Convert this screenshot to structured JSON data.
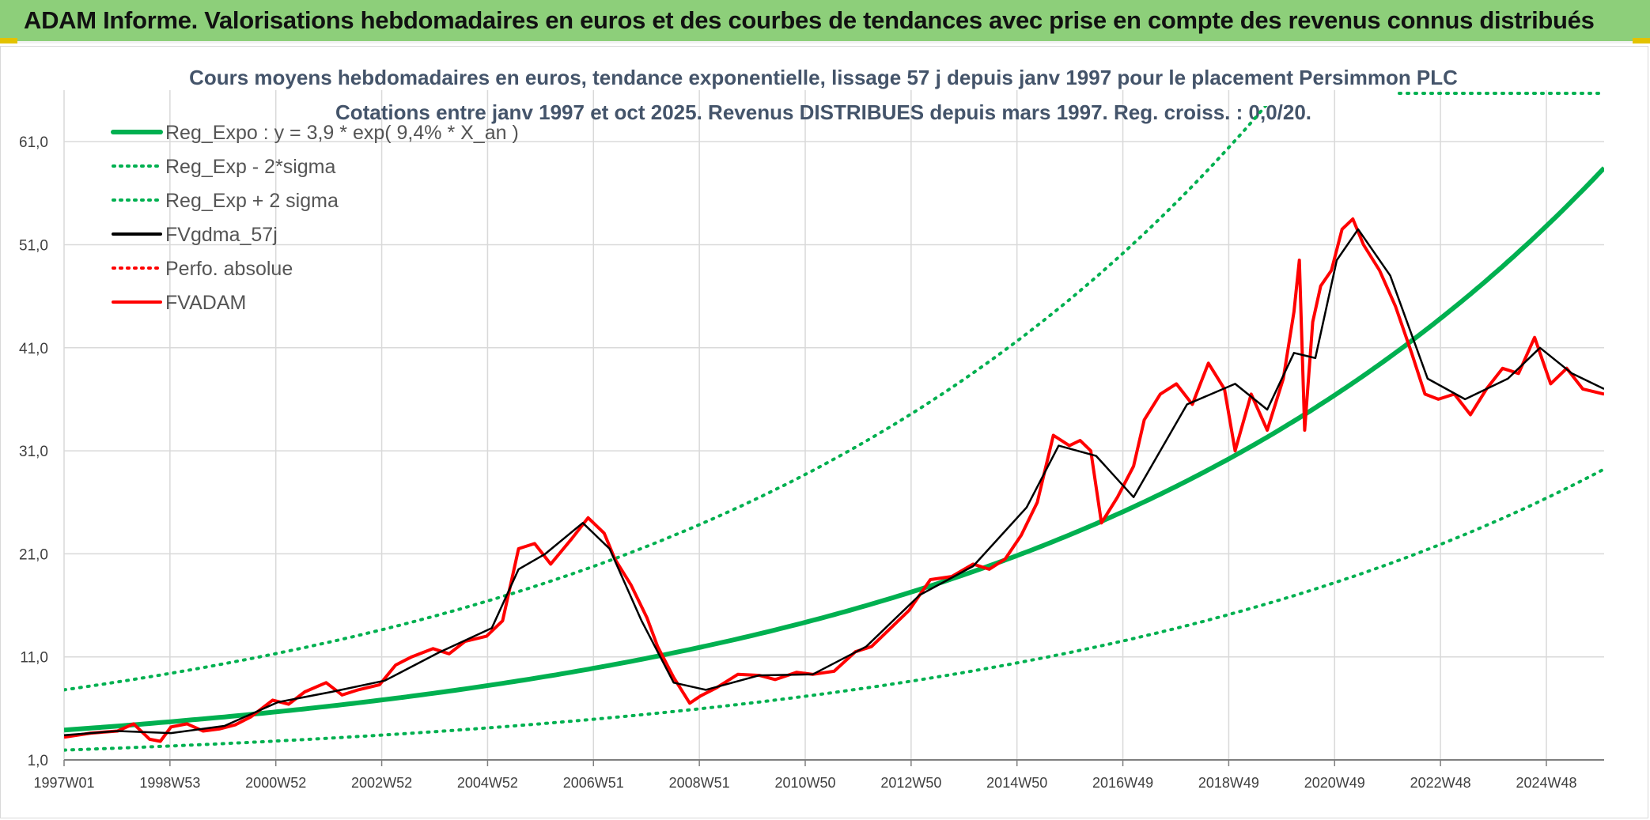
{
  "page": {
    "title": "ADAM Informe. Valorisations hebdomadaires en euros et des courbes de tendances avec prise en compte des revenus connus distribués"
  },
  "colors": {
    "header": "#8dcf7a",
    "reg_green": "#00b050",
    "price_red": "#ff0000",
    "smooth_black": "#000000",
    "grid": "#d9d9d9"
  },
  "chart_data": {
    "type": "line",
    "title": "Cours moyens hebdomadaires en euros, tendance exponentielle, lissage 57 j depuis janv 1997 pour le placement Persimmon PLC",
    "subtitle": "Cotations entre janv 1997 et oct 2025. Revenus DISTRIBUES depuis mars 1997. Reg. croiss. : 0,0/20.",
    "xlabel": "",
    "ylabel": "",
    "x_range": [
      1997.0,
      2025.8
    ],
    "ylim": [
      1,
      66
    ],
    "y_ticks": [
      "1,0",
      "11,0",
      "21,0",
      "31,0",
      "41,0",
      "51,0",
      "61,0"
    ],
    "x_ticks": [
      "1997W01",
      "1998W53",
      "2000W52",
      "2002W52",
      "2004W52",
      "2006W51",
      "2008W51",
      "2010W50",
      "2012W50",
      "2014W50",
      "2016W49",
      "2018W49",
      "2020W49",
      "2022W48",
      "2024W48"
    ],
    "legend": [
      {
        "label": "Reg_Expo : y = 3,9 * exp( 9,4% *  X_an )",
        "style": "solid-thick",
        "color": "#00b050"
      },
      {
        "label": "Reg_Exp - 2*sigma",
        "style": "dotted",
        "color": "#00b050"
      },
      {
        "label": "Reg_Exp + 2 sigma",
        "style": "dotted",
        "color": "#00b050"
      },
      {
        "label": "FVgdma_57j",
        "style": "solid",
        "color": "#000000"
      },
      {
        "label": "Perfo. absolue",
        "style": "dotted",
        "color": "#ff0000"
      },
      {
        "label": "FVADAM",
        "style": "solid",
        "color": "#ff0000"
      }
    ],
    "regression": {
      "a": 3.9,
      "rate": 0.094,
      "lower_factor": 0.5,
      "upper_factor": 2.0
    },
    "series": [
      {
        "name": "FVADAM",
        "x": [
          1997.0,
          1997.5,
          1998.0,
          1998.3,
          1998.6,
          1998.8,
          1999.0,
          1999.3,
          1999.6,
          1999.9,
          2000.2,
          2000.5,
          2000.9,
          2001.2,
          2001.5,
          2001.9,
          2002.2,
          2002.5,
          2002.9,
          2003.2,
          2003.5,
          2003.9,
          2004.2,
          2004.5,
          2004.9,
          2005.2,
          2005.5,
          2005.8,
          2006.1,
          2006.5,
          2006.8,
          2007.1,
          2007.3,
          2007.6,
          2007.9,
          2008.1,
          2008.4,
          2008.7,
          2008.9,
          2009.2,
          2009.6,
          2010.0,
          2010.3,
          2010.7,
          2011.0,
          2011.4,
          2011.8,
          2012.1,
          2012.5,
          2012.8,
          2013.2,
          2013.6,
          2014.0,
          2014.3,
          2014.6,
          2014.9,
          2015.2,
          2015.5,
          2015.8,
          2016.0,
          2016.2,
          2016.4,
          2016.7,
          2017.0,
          2017.2,
          2017.5,
          2017.8,
          2018.1,
          2018.4,
          2018.7,
          2018.9,
          2019.2,
          2019.5,
          2019.8,
          2020.0,
          2020.1,
          2020.2,
          2020.35,
          2020.5,
          2020.7,
          2020.9,
          2021.1,
          2021.3,
          2021.6,
          2021.9,
          2022.2,
          2022.45,
          2022.7,
          2023.0,
          2023.3,
          2023.6,
          2023.9,
          2024.2,
          2024.5,
          2024.8,
          2025.1,
          2025.4,
          2025.8
        ],
        "values": [
          3.2,
          3.6,
          3.8,
          4.5,
          3.0,
          2.8,
          4.2,
          4.5,
          3.8,
          4.0,
          4.4,
          5.2,
          6.8,
          6.4,
          7.6,
          8.5,
          7.3,
          7.8,
          8.3,
          10.2,
          11.0,
          11.8,
          11.3,
          12.5,
          13.0,
          14.5,
          21.5,
          22.0,
          20.0,
          22.5,
          24.5,
          23.0,
          20.5,
          18.0,
          14.8,
          12.0,
          9.0,
          6.5,
          7.2,
          8.0,
          9.3,
          9.2,
          8.8,
          9.5,
          9.3,
          9.6,
          11.5,
          12.0,
          14.0,
          15.5,
          18.5,
          18.8,
          20.0,
          19.5,
          20.5,
          22.8,
          26.0,
          32.5,
          31.5,
          32.0,
          31.0,
          24.0,
          26.5,
          29.5,
          34.0,
          36.5,
          37.5,
          35.5,
          39.5,
          37.0,
          31.0,
          36.5,
          33.0,
          38.0,
          44.5,
          49.5,
          33.0,
          43.5,
          47.0,
          48.5,
          52.5,
          53.5,
          51.0,
          48.5,
          45.0,
          40.5,
          36.5,
          36.0,
          36.5,
          34.5,
          37.0,
          39.0,
          38.5,
          42.0,
          37.5,
          39.0,
          37.0,
          36.5
        ]
      },
      {
        "name": "FVgdma_57j",
        "x": [
          1997.0,
          1998.0,
          1999.0,
          2000.0,
          2001.0,
          2002.0,
          2003.0,
          2004.0,
          2005.0,
          2005.5,
          2006.0,
          2006.7,
          2007.2,
          2007.8,
          2008.4,
          2009.0,
          2010.0,
          2011.0,
          2012.0,
          2013.0,
          2014.0,
          2015.0,
          2015.6,
          2016.3,
          2017.0,
          2018.0,
          2018.9,
          2019.5,
          2020.0,
          2020.4,
          2020.8,
          2021.2,
          2021.8,
          2022.5,
          2023.2,
          2024.0,
          2024.6,
          2025.2,
          2025.8
        ],
        "values": [
          3.4,
          3.8,
          3.6,
          4.3,
          6.6,
          7.6,
          8.7,
          11.4,
          13.8,
          19.5,
          21.0,
          24.0,
          21.5,
          14.5,
          8.5,
          7.8,
          9.2,
          9.3,
          12.0,
          17.0,
          19.8,
          25.5,
          31.5,
          30.5,
          26.5,
          35.5,
          37.5,
          35.0,
          40.5,
          40.0,
          49.5,
          52.5,
          48.0,
          38.0,
          36.0,
          38.0,
          41.0,
          38.5,
          37.0
        ]
      }
    ]
  }
}
